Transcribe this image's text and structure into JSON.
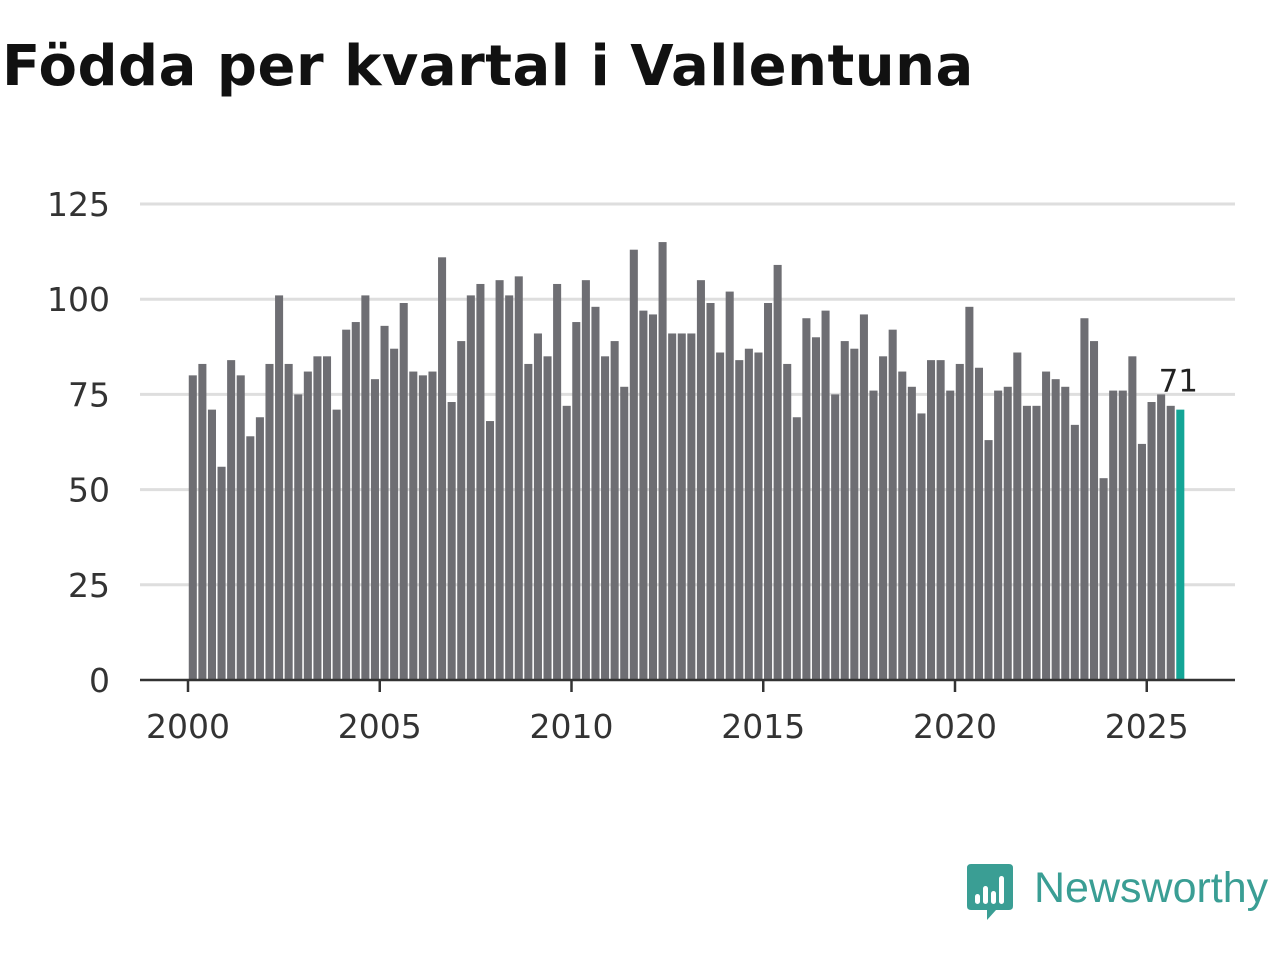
{
  "page": {
    "title": "Födda per kvartal i Vallentuna"
  },
  "brand": {
    "name": "Newsworthy",
    "logo_icon": "bar-chart-speech-bubble-icon",
    "color": "#3a9e94"
  },
  "colors": {
    "bar": "#6e6e73",
    "highlight": "#13a596",
    "grid": "#dedede",
    "axis": "#333333"
  },
  "chart_data": {
    "type": "bar",
    "title": "Födda per kvartal i Vallentuna",
    "xlabel": "",
    "ylabel": "",
    "ylim": [
      0,
      125
    ],
    "yticks": [
      0,
      25,
      50,
      75,
      100,
      125
    ],
    "xticks": [
      "2000",
      "2005",
      "2010",
      "2015",
      "2020",
      "2025"
    ],
    "xlim": [
      2000,
      2027
    ],
    "start": "2000 Q1",
    "frequency": "quarterly",
    "grid": true,
    "highlight_last": true,
    "last_value_label": "71",
    "values": [
      80,
      83,
      71,
      56,
      84,
      80,
      64,
      69,
      83,
      101,
      83,
      75,
      81,
      85,
      85,
      71,
      92,
      94,
      101,
      79,
      93,
      87,
      99,
      81,
      80,
      81,
      111,
      73,
      89,
      101,
      104,
      68,
      105,
      101,
      106,
      83,
      91,
      85,
      104,
      72,
      94,
      105,
      98,
      85,
      89,
      77,
      113,
      97,
      96,
      115,
      91,
      91,
      91,
      105,
      99,
      86,
      102,
      84,
      87,
      86,
      99,
      109,
      83,
      69,
      95,
      90,
      97,
      75,
      89,
      87,
      96,
      76,
      85,
      92,
      81,
      77,
      70,
      84,
      84,
      76,
      83,
      98,
      82,
      63,
      76,
      77,
      86,
      72,
      72,
      81,
      79,
      77,
      67,
      95,
      89,
      53,
      76,
      76,
      85,
      62,
      73,
      75,
      72,
      71
    ]
  }
}
